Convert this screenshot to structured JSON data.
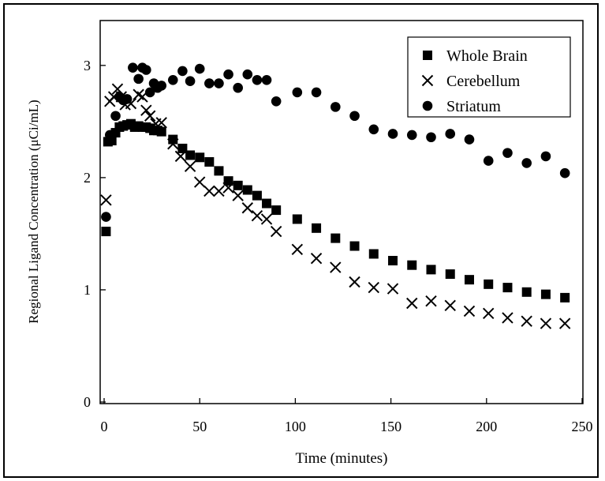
{
  "chart_data": {
    "type": "scatter",
    "title": "",
    "xlabel": "Time (minutes)",
    "ylabel": "Regional Ligand Concentration (μCi/mL)",
    "xlim": [
      0,
      250
    ],
    "ylim": [
      0,
      3.4
    ],
    "xticks": [
      0,
      50,
      100,
      150,
      200,
      250
    ],
    "yticks": [
      0,
      1,
      2,
      3
    ],
    "grid": false,
    "legend_position": "top-right",
    "series": [
      {
        "name": "Whole Brain",
        "marker": "square",
        "points": [
          [
            1,
            1.52
          ],
          [
            2,
            2.32
          ],
          [
            4,
            2.33
          ],
          [
            6,
            2.4
          ],
          [
            8,
            2.45
          ],
          [
            10,
            2.46
          ],
          [
            12,
            2.47
          ],
          [
            14,
            2.48
          ],
          [
            16,
            2.45
          ],
          [
            18,
            2.46
          ],
          [
            20,
            2.45
          ],
          [
            22,
            2.45
          ],
          [
            24,
            2.44
          ],
          [
            26,
            2.42
          ],
          [
            28,
            2.42
          ],
          [
            30,
            2.41
          ],
          [
            36,
            2.34
          ],
          [
            41,
            2.26
          ],
          [
            45,
            2.2
          ],
          [
            50,
            2.18
          ],
          [
            55,
            2.14
          ],
          [
            60,
            2.06
          ],
          [
            65,
            1.97
          ],
          [
            70,
            1.93
          ],
          [
            75,
            1.89
          ],
          [
            80,
            1.84
          ],
          [
            85,
            1.77
          ],
          [
            90,
            1.71
          ],
          [
            101,
            1.63
          ],
          [
            111,
            1.55
          ],
          [
            121,
            1.46
          ],
          [
            131,
            1.39
          ],
          [
            141,
            1.32
          ],
          [
            151,
            1.26
          ],
          [
            161,
            1.22
          ],
          [
            171,
            1.18
          ],
          [
            181,
            1.14
          ],
          [
            191,
            1.09
          ],
          [
            201,
            1.05
          ],
          [
            211,
            1.02
          ],
          [
            221,
            0.98
          ],
          [
            231,
            0.96
          ],
          [
            241,
            0.93
          ]
        ]
      },
      {
        "name": "Cerebellum",
        "marker": "cross",
        "points": [
          [
            1,
            1.8
          ],
          [
            3,
            2.68
          ],
          [
            5,
            2.72
          ],
          [
            7,
            2.79
          ],
          [
            9,
            2.72
          ],
          [
            11,
            2.65
          ],
          [
            14,
            2.66
          ],
          [
            18,
            2.74
          ],
          [
            20,
            2.72
          ],
          [
            22,
            2.6
          ],
          [
            24,
            2.55
          ],
          [
            27,
            2.48
          ],
          [
            30,
            2.49
          ],
          [
            36,
            2.3
          ],
          [
            40,
            2.19
          ],
          [
            45,
            2.1
          ],
          [
            50,
            1.96
          ],
          [
            55,
            1.88
          ],
          [
            60,
            1.88
          ],
          [
            65,
            1.91
          ],
          [
            70,
            1.84
          ],
          [
            75,
            1.73
          ],
          [
            80,
            1.66
          ],
          [
            85,
            1.63
          ],
          [
            90,
            1.52
          ],
          [
            101,
            1.36
          ],
          [
            111,
            1.28
          ],
          [
            121,
            1.2
          ],
          [
            131,
            1.07
          ],
          [
            141,
            1.02
          ],
          [
            151,
            1.01
          ],
          [
            161,
            0.88
          ],
          [
            171,
            0.9
          ],
          [
            181,
            0.86
          ],
          [
            191,
            0.81
          ],
          [
            201,
            0.79
          ],
          [
            211,
            0.75
          ],
          [
            221,
            0.72
          ],
          [
            231,
            0.7
          ],
          [
            241,
            0.7
          ]
        ]
      },
      {
        "name": "Striatum",
        "marker": "circle",
        "points": [
          [
            1,
            1.65
          ],
          [
            3,
            2.38
          ],
          [
            6,
            2.55
          ],
          [
            8,
            2.72
          ],
          [
            10,
            2.69
          ],
          [
            12,
            2.7
          ],
          [
            15,
            2.98
          ],
          [
            18,
            2.88
          ],
          [
            20,
            2.98
          ],
          [
            22,
            2.96
          ],
          [
            24,
            2.76
          ],
          [
            26,
            2.84
          ],
          [
            28,
            2.8
          ],
          [
            30,
            2.82
          ],
          [
            36,
            2.87
          ],
          [
            41,
            2.95
          ],
          [
            45,
            2.86
          ],
          [
            50,
            2.97
          ],
          [
            55,
            2.84
          ],
          [
            60,
            2.84
          ],
          [
            65,
            2.92
          ],
          [
            70,
            2.8
          ],
          [
            75,
            2.92
          ],
          [
            80,
            2.87
          ],
          [
            85,
            2.87
          ],
          [
            90,
            2.68
          ],
          [
            101,
            2.76
          ],
          [
            111,
            2.76
          ],
          [
            121,
            2.63
          ],
          [
            131,
            2.55
          ],
          [
            141,
            2.43
          ],
          [
            151,
            2.39
          ],
          [
            161,
            2.38
          ],
          [
            171,
            2.36
          ],
          [
            181,
            2.39
          ],
          [
            191,
            2.34
          ],
          [
            201,
            2.15
          ],
          [
            211,
            2.22
          ],
          [
            221,
            2.13
          ],
          [
            231,
            2.19
          ],
          [
            241,
            2.04
          ]
        ]
      }
    ]
  }
}
